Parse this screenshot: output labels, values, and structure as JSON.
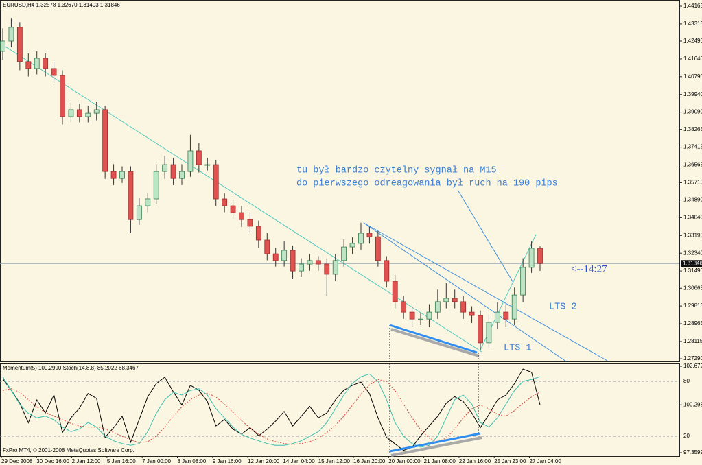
{
  "chart_data": [
    {
      "type": "candlestick",
      "title": "EURUSD,H4  1.32578 1.32670 1.31493 1.31846",
      "open": [
        1.42,
        1.4249,
        1.4315,
        1.4151,
        1.4118,
        1.4167,
        1.4118,
        1.4085,
        1.3888,
        1.3921,
        1.3888,
        1.3904,
        1.3921,
        1.3625,
        1.3592,
        1.3625,
        1.3395,
        1.3461,
        1.3494,
        1.3625,
        1.3658,
        1.3592,
        1.3625,
        1.3724,
        1.3658,
        1.3658,
        1.3494,
        1.3461,
        1.3428,
        1.3395,
        1.3363,
        1.3297,
        1.3231,
        1.3199,
        1.3248,
        1.3149,
        1.3182,
        1.3199,
        1.3182,
        1.3133,
        1.3199,
        1.3264,
        1.3281,
        1.333,
        1.3313,
        1.3199,
        1.31,
        1.3002,
        1.2952,
        1.2919,
        1.2919,
        1.2952,
        1.3002,
        1.3018,
        1.3002,
        1.2952,
        1.2936,
        1.2805,
        1.2903,
        1.2952,
        1.2919,
        1.3034,
        1.3166,
        1.32578
      ],
      "high": [
        1.431,
        1.436,
        1.434,
        1.419,
        1.42,
        1.419,
        1.415,
        1.411,
        1.396,
        1.395,
        1.394,
        1.396,
        1.394,
        1.366,
        1.365,
        1.365,
        1.35,
        1.352,
        1.366,
        1.37,
        1.369,
        1.366,
        1.38,
        1.376,
        1.369,
        1.368,
        1.352,
        1.349,
        1.346,
        1.343,
        1.339,
        1.333,
        1.326,
        1.329,
        1.327,
        1.321,
        1.323,
        1.322,
        1.321,
        1.323,
        1.33,
        1.331,
        1.338,
        1.336,
        1.334,
        1.322,
        1.313,
        1.303,
        1.298,
        1.295,
        1.299,
        1.306,
        1.309,
        1.306,
        1.303,
        1.298,
        1.296,
        1.294,
        1.3,
        1.299,
        1.307,
        1.321,
        1.329,
        1.3267
      ],
      "low": [
        1.416,
        1.422,
        1.411,
        1.408,
        1.409,
        1.408,
        1.405,
        1.385,
        1.386,
        1.386,
        1.386,
        1.387,
        1.359,
        1.356,
        1.357,
        1.333,
        1.337,
        1.343,
        1.347,
        1.359,
        1.356,
        1.356,
        1.36,
        1.362,
        1.363,
        1.346,
        1.343,
        1.34,
        1.336,
        1.333,
        1.326,
        1.32,
        1.317,
        1.317,
        1.311,
        1.312,
        1.315,
        1.315,
        1.303,
        1.31,
        1.317,
        1.323,
        1.325,
        1.328,
        1.317,
        1.307,
        1.297,
        1.292,
        1.288,
        1.289,
        1.288,
        1.292,
        1.297,
        1.297,
        1.292,
        1.29,
        1.277,
        1.278,
        1.287,
        1.288,
        1.289,
        1.3,
        1.314,
        1.31493
      ],
      "close": [
        1.4249,
        1.4315,
        1.4151,
        1.4118,
        1.4167,
        1.4118,
        1.4085,
        1.3888,
        1.3921,
        1.3888,
        1.3904,
        1.3921,
        1.3625,
        1.3592,
        1.3625,
        1.3395,
        1.3461,
        1.3494,
        1.3625,
        1.3658,
        1.3592,
        1.3625,
        1.3724,
        1.3658,
        1.3658,
        1.3494,
        1.3461,
        1.3428,
        1.3395,
        1.3363,
        1.3297,
        1.3231,
        1.3199,
        1.3248,
        1.3149,
        1.3182,
        1.3199,
        1.3182,
        1.3133,
        1.3199,
        1.3264,
        1.3281,
        1.333,
        1.3313,
        1.3199,
        1.31,
        1.3002,
        1.2952,
        1.2919,
        1.2919,
        1.2952,
        1.3002,
        1.3018,
        1.3002,
        1.2952,
        1.2936,
        1.2805,
        1.2903,
        1.2952,
        1.2919,
        1.3034,
        1.3166,
        1.32578,
        1.31846
      ],
      "up_color": "#bfe3c6",
      "down_color": "#e0524f",
      "ylim": [
        1.2716,
        1.4446
      ],
      "yticks": [
        1.44165,
        1.43315,
        {
          "value": 1.4249,
          "label": "1.42490"
        },
        {
          "value": 1.4164,
          "label": "1.41640"
        },
        {
          "value": 1.4079,
          "label": "1.40790"
        },
        {
          "value": 1.3994,
          "label": "1.39940"
        },
        {
          "value": 1.3909,
          "label": "1.39090"
        },
        1.38265,
        1.37415,
        1.36565,
        1.35715,
        {
          "value": 1.3489,
          "label": "1.34890"
        },
        {
          "value": 1.3404,
          "label": "1.34040"
        },
        {
          "value": 1.3319,
          "label": "1.33190"
        },
        {
          "value": 1.3234,
          "label": "1.32340"
        },
        {
          "value": 1.3149,
          "label": "1.31490"
        },
        1.30665,
        1.29815,
        1.28965,
        1.28115,
        {
          "value": 1.2729,
          "label": "1.27290"
        }
      ],
      "price_marker": 1.31846,
      "annotations": [
        "tu był bardzo czytelny sygnał na M15",
        "do pierwszego odreagowania był ruch na 190 pips",
        "<--14:27",
        "LTS 2",
        "LTS 1"
      ]
    },
    {
      "type": "line",
      "title": "Momentum(5) 100.2990  Stoch(14,8,8) 85.2022 68.3467",
      "series": [
        {
          "color": "#000000",
          "values": [
            101.9,
            101.2,
            100.4,
            99.2,
            100.6,
            99.8,
            100.9,
            98.6,
            99.5,
            100.1,
            101.0,
            100.7,
            98.3,
            98.9,
            99.6,
            98.0,
            99.4,
            100.8,
            101.6,
            102.0,
            101.1,
            100.3,
            101.5,
            101.2,
            100.5,
            99.0,
            99.4,
            98.8,
            98.5,
            98.9,
            98.4,
            98.8,
            99.3,
            99.9,
            99.0,
            99.6,
            100.2,
            99.5,
            99.8,
            100.6,
            101.2,
            101.5,
            101.7,
            101.0,
            99.5,
            98.3,
            97.9,
            97.5,
            97.7,
            98.4,
            99.0,
            99.6,
            100.4,
            100.8,
            100.5,
            99.8,
            98.9,
            99.7,
            100.6,
            100.9,
            101.6,
            102.5,
            102.3,
            100.299
          ]
        },
        {
          "color": "#3cbfae",
          "axis": "y2",
          "values": [
            85,
            70,
            55,
            45,
            40,
            42,
            38,
            30,
            25,
            28,
            35,
            30,
            20,
            15,
            12,
            10,
            12,
            25,
            45,
            60,
            68,
            65,
            70,
            72,
            65,
            50,
            40,
            30,
            22,
            18,
            15,
            12,
            10,
            10,
            12,
            15,
            20,
            25,
            35,
            50,
            65,
            78,
            85,
            88,
            80,
            60,
            35,
            20,
            12,
            8,
            10,
            20,
            40,
            60,
            65,
            55,
            35,
            30,
            40,
            55,
            70,
            80,
            82,
            85.2022
          ]
        },
        {
          "color": "#e0453c",
          "axis": "y2",
          "dashed": true,
          "values": [
            70,
            72,
            68,
            60,
            52,
            46,
            42,
            38,
            34,
            31,
            30,
            30,
            28,
            24,
            20,
            16,
            13,
            14,
            20,
            30,
            42,
            52,
            60,
            65,
            67,
            63,
            55,
            46,
            37,
            29,
            22,
            17,
            14,
            12,
            11,
            12,
            14,
            18,
            24,
            32,
            42,
            54,
            66,
            76,
            82,
            80,
            70,
            55,
            40,
            27,
            18,
            14,
            18,
            28,
            40,
            50,
            54,
            50,
            44,
            42,
            48,
            56,
            63,
            68.3467
          ]
        }
      ],
      "ylim": [
        97.3599,
        102.672
      ],
      "yticks": [
        {
          "value": 102.672,
          "label": "102.6720"
        },
        100.2986,
        97.3599
      ],
      "y2lim": [
        2,
        96.5
      ],
      "y2ticks": [
        80,
        20
      ],
      "x_labels": [
        "29 Dec 2008",
        "30 Dec 16:00",
        "2 Jan 12:00",
        "5 Jan 16:00",
        "7 Jan 00:00",
        "8 Jan 08:00",
        "9 Jan 16:00",
        "12 Jan 20:00",
        "14 Jan 04:00",
        "15 Jan 12:00",
        "16 Jan 20:00",
        "20 Jan 00:00",
        "21 Jan 08:00",
        "22 Jan 16:00",
        "25 Jan 23:00",
        "27 Jan 04:00"
      ],
      "footer": "FxPro MT4, © 2001-2008 MetaQuotes Software Corp."
    }
  ]
}
